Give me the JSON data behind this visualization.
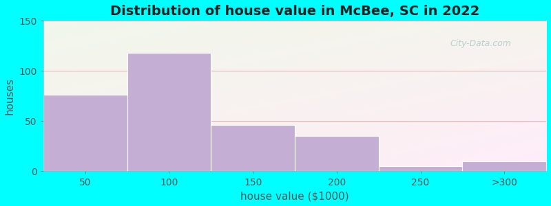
{
  "title": "Distribution of house value in McBee, SC in 2022",
  "xlabel": "house value ($1000)",
  "ylabel": "houses",
  "background_color": "#00FFFF",
  "plot_bg_colors": [
    "#ddeedd",
    "#eef5ee",
    "#f5f5f0",
    "#f0eef5",
    "#eeeef8",
    "#f5f5f8"
  ],
  "bar_color": "#c4aed4",
  "bar_edge_color": "#c4aed4",
  "grid_color": "#e8a8a8",
  "categories": [
    "50",
    "100",
    "150",
    "200",
    "250",
    ">300"
  ],
  "values": [
    76,
    118,
    46,
    35,
    5,
    10
  ],
  "bin_edges": [
    0,
    1,
    2,
    3,
    4,
    5,
    6
  ],
  "ylim": [
    0,
    150
  ],
  "yticks": [
    0,
    50,
    100,
    150
  ],
  "xtick_positions": [
    0.5,
    1.5,
    2.5,
    3.5,
    4.5,
    5.5
  ],
  "title_fontsize": 14,
  "axis_label_fontsize": 11,
  "tick_fontsize": 10,
  "watermark_text": "City-Data.com",
  "watermark_color": "#aacccc"
}
